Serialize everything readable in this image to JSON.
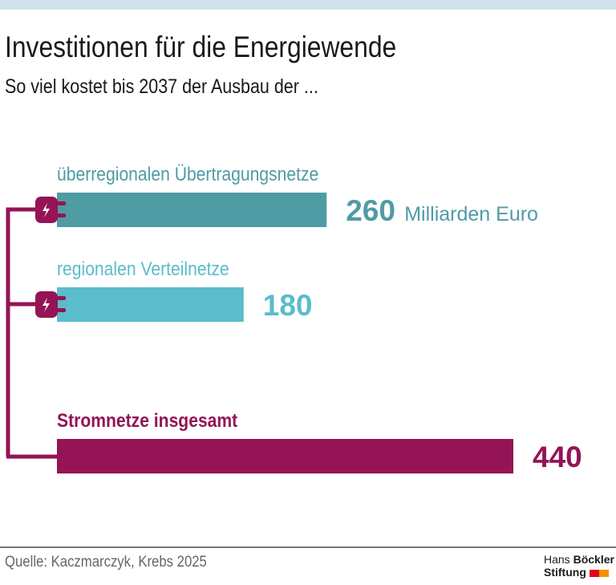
{
  "title": "Investitionen für die Energiewende",
  "subtitle": "So viel kostet bis 2037 der Ausbau der ...",
  "source": "Quelle: Kaczmarczyk, Krebs 2025",
  "logo": {
    "line1a": "Hans",
    "line1b": "Böckler",
    "line2": "Stiftung"
  },
  "chart_data": {
    "type": "bar",
    "orientation": "horizontal",
    "unit": "Milliarden Euro",
    "categories": [
      "überregionalen Übertragungsnetze",
      "regionalen Verteilnetze",
      "Stromnetze insgesamt"
    ],
    "values": [
      260,
      180,
      440
    ],
    "value_labels": [
      "260",
      "180",
      "440"
    ],
    "colors": [
      "#4f9ca5",
      "#5bbccb",
      "#941455"
    ],
    "connector_color": "#941455",
    "xlim": [
      0,
      440
    ]
  }
}
